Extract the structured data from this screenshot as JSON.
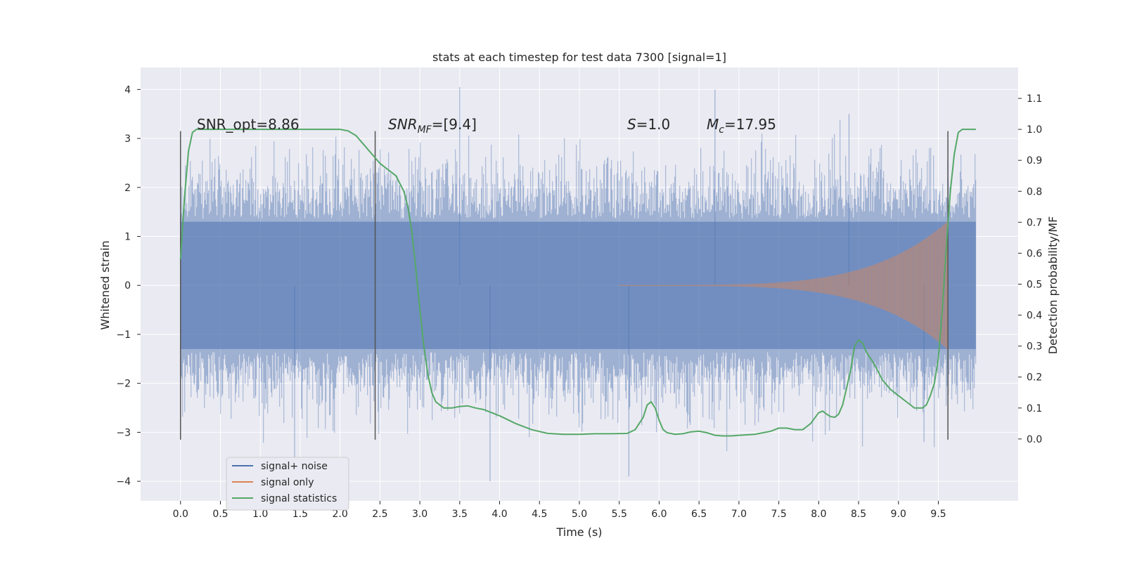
{
  "chart_data": {
    "type": "line",
    "title": "stats at each timestep for test data 7300 [signal=1]",
    "xlabel": "Time (s)",
    "ylabel": "Whitened strain",
    "ylabel_right": "Detection probability/MF",
    "xlim": [
      -0.5,
      10.5
    ],
    "ylim": [
      -4.4,
      4.45
    ],
    "ylim_right": [
      -0.2,
      1.2
    ],
    "x_ticks": [
      "0.0",
      "0.5",
      "1.0",
      "1.5",
      "2.0",
      "2.5",
      "3.0",
      "3.5",
      "4.0",
      "4.5",
      "5.0",
      "5.5",
      "6.0",
      "6.5",
      "7.0",
      "7.5",
      "8.0",
      "8.5",
      "9.0",
      "9.5"
    ],
    "y_ticks": [
      "4",
      "3",
      "2",
      "1",
      "0",
      "−1",
      "−2",
      "−3",
      "−4"
    ],
    "y_right_ticks": [
      "1.1",
      "1.0",
      "0.9",
      "0.8",
      "0.7",
      "0.6",
      "0.5",
      "0.4",
      "0.3",
      "0.2",
      "0.1",
      "0.0"
    ],
    "grid": true,
    "legend_position": "lower-left",
    "annotations": {
      "snr_opt": "SNR_opt=8.86",
      "snr_mf_main": "SNR",
      "snr_mf_sub": "MF",
      "snr_mf_rest": "=[9.4]",
      "s_main": "S",
      "s_rest": "=1.0",
      "mc_main": "M",
      "mc_sub": "c",
      "mc_rest": "=17.95"
    },
    "vertical_markers": [
      {
        "x": 0.0,
        "ymin": -3.15,
        "ymax": 3.15
      },
      {
        "x": 2.44,
        "ymin": -3.15,
        "ymax": 3.15
      },
      {
        "x": 9.62,
        "ymin": -3.15,
        "ymax": 3.15
      }
    ],
    "series": [
      {
        "name": "signal+ noise",
        "color": "#4c72b0",
        "kind": "noise",
        "t_range": [
          0.0,
          9.97
        ],
        "typical_amplitude": 1.3,
        "extreme_min": -4.0,
        "extreme_max": 4.05
      },
      {
        "name": "signal only",
        "color": "#dd8452",
        "kind": "chirp",
        "t_range": [
          5.5,
          9.62
        ],
        "peak_amplitude": 1.3
      },
      {
        "name": "signal statistics",
        "color": "#55a868",
        "kind": "line",
        "x": [
          0.0,
          0.05,
          0.1,
          0.15,
          0.2,
          0.3,
          0.5,
          1.0,
          1.5,
          2.0,
          2.1,
          2.2,
          2.3,
          2.4,
          2.5,
          2.6,
          2.7,
          2.8,
          2.85,
          2.9,
          2.95,
          3.0,
          3.05,
          3.1,
          3.15,
          3.2,
          3.3,
          3.4,
          3.5,
          3.6,
          3.7,
          3.8,
          3.9,
          4.0,
          4.2,
          4.4,
          4.6,
          4.8,
          5.0,
          5.2,
          5.4,
          5.6,
          5.7,
          5.8,
          5.85,
          5.9,
          5.95,
          6.0,
          6.05,
          6.1,
          6.2,
          6.3,
          6.4,
          6.5,
          6.6,
          6.7,
          6.8,
          6.9,
          7.0,
          7.2,
          7.4,
          7.5,
          7.6,
          7.7,
          7.8,
          7.9,
          8.0,
          8.05,
          8.1,
          8.15,
          8.2,
          8.25,
          8.3,
          8.4,
          8.45,
          8.5,
          8.55,
          8.6,
          8.7,
          8.8,
          8.9,
          9.0,
          9.1,
          9.2,
          9.3,
          9.35,
          9.4,
          9.45,
          9.5,
          9.55,
          9.6,
          9.65,
          9.7,
          9.75,
          9.8,
          9.85,
          9.9,
          9.97
        ],
        "y": [
          0.58,
          0.78,
          0.93,
          0.99,
          1.0,
          1.0,
          1.0,
          1.0,
          1.0,
          1.0,
          0.995,
          0.98,
          0.95,
          0.92,
          0.89,
          0.87,
          0.85,
          0.8,
          0.75,
          0.67,
          0.55,
          0.42,
          0.3,
          0.21,
          0.15,
          0.12,
          0.1,
          0.1,
          0.105,
          0.107,
          0.1,
          0.095,
          0.085,
          0.075,
          0.05,
          0.03,
          0.018,
          0.015,
          0.015,
          0.017,
          0.017,
          0.018,
          0.03,
          0.07,
          0.11,
          0.12,
          0.1,
          0.06,
          0.03,
          0.02,
          0.015,
          0.017,
          0.023,
          0.025,
          0.02,
          0.012,
          0.01,
          0.01,
          0.012,
          0.015,
          0.025,
          0.035,
          0.035,
          0.03,
          0.03,
          0.05,
          0.085,
          0.09,
          0.08,
          0.072,
          0.07,
          0.08,
          0.11,
          0.22,
          0.3,
          0.32,
          0.31,
          0.28,
          0.24,
          0.19,
          0.16,
          0.14,
          0.12,
          0.1,
          0.1,
          0.11,
          0.14,
          0.18,
          0.26,
          0.42,
          0.62,
          0.8,
          0.92,
          0.99,
          1.0,
          1.0,
          1.0,
          1.0
        ]
      }
    ]
  }
}
